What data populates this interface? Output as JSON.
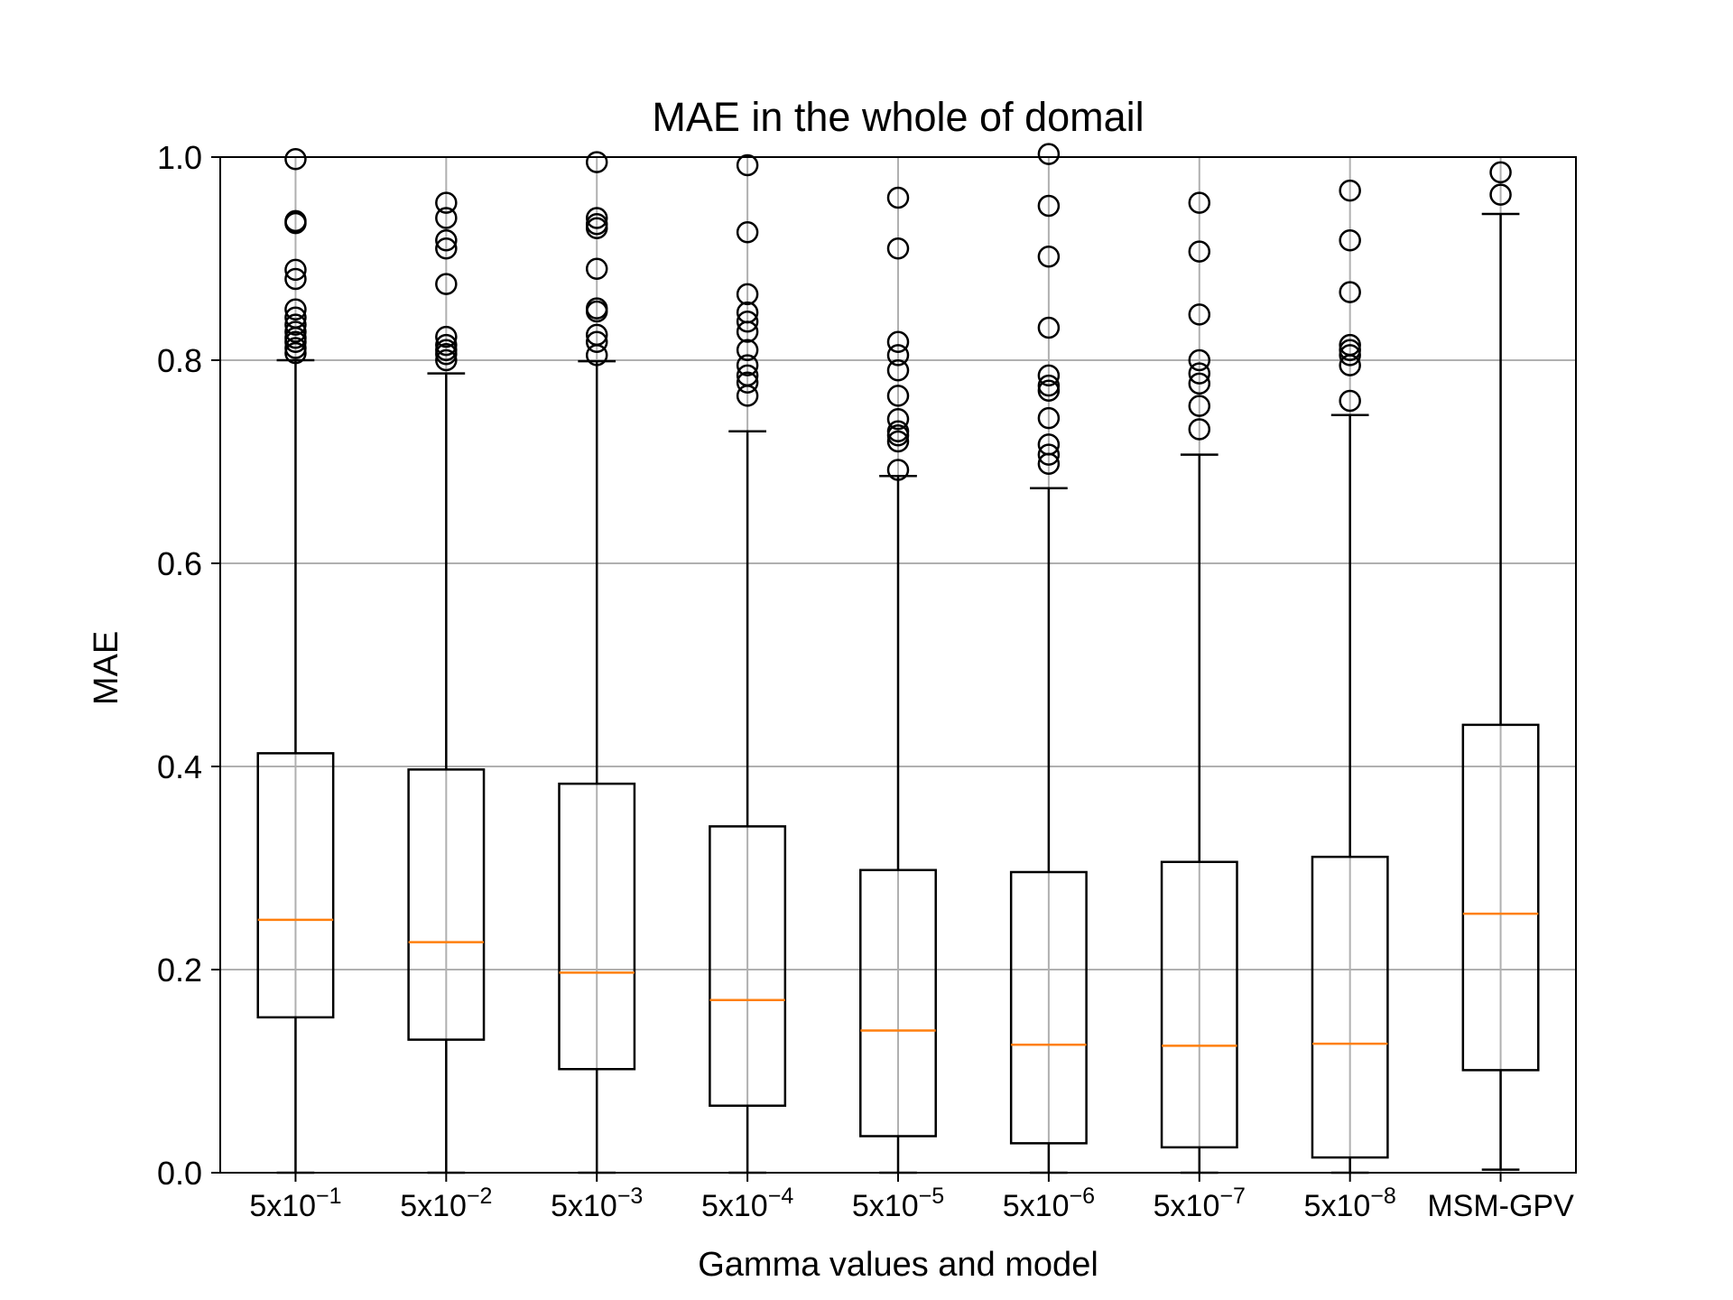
{
  "chart_data": {
    "type": "box",
    "title": "MAE in the whole of domail",
    "xlabel": "Gamma values and model",
    "ylabel": "MAE",
    "ylim": [
      0.0,
      1.0
    ],
    "yticks": [
      "0.0",
      "0.2",
      "0.4",
      "0.6",
      "0.8",
      "1.0"
    ],
    "grid": true,
    "colors": {
      "box": "#000000",
      "median": "#ff7f0e",
      "grid": "#b0b0b0"
    },
    "categories": [
      {
        "base": "5x10",
        "exp": "−1"
      },
      {
        "base": "5x10",
        "exp": "−2"
      },
      {
        "base": "5x10",
        "exp": "−3"
      },
      {
        "base": "5x10",
        "exp": "−4"
      },
      {
        "base": "5x10",
        "exp": "−5"
      },
      {
        "base": "5x10",
        "exp": "−6"
      },
      {
        "base": "5x10",
        "exp": "−7"
      },
      {
        "base": "5x10",
        "exp": "−8"
      },
      {
        "base": "MSM-GPV",
        "exp": ""
      }
    ],
    "boxes": [
      {
        "whislo": 0.0,
        "q1": 0.153,
        "med": 0.249,
        "q3": 0.413,
        "whishi": 0.8,
        "fliers": [
          0.807,
          0.812,
          0.818,
          0.822,
          0.828,
          0.835,
          0.842,
          0.85,
          0.88,
          0.889,
          0.935,
          0.937,
          0.998
        ]
      },
      {
        "whislo": 0.0,
        "q1": 0.131,
        "med": 0.227,
        "q3": 0.397,
        "whishi": 0.787,
        "fliers": [
          0.8,
          0.806,
          0.81,
          0.815,
          0.823,
          0.875,
          0.91,
          0.918,
          0.94,
          0.955
        ]
      },
      {
        "whislo": 0.0,
        "q1": 0.102,
        "med": 0.197,
        "q3": 0.383,
        "whishi": 0.799,
        "fliers": [
          0.805,
          0.818,
          0.825,
          0.848,
          0.851,
          0.89,
          0.93,
          0.934,
          0.94,
          0.995
        ]
      },
      {
        "whislo": 0.0,
        "q1": 0.066,
        "med": 0.17,
        "q3": 0.341,
        "whishi": 0.73,
        "fliers": [
          0.765,
          0.778,
          0.785,
          0.795,
          0.81,
          0.828,
          0.838,
          0.847,
          0.865,
          0.926,
          0.992
        ]
      },
      {
        "whislo": 0.0,
        "q1": 0.036,
        "med": 0.14,
        "q3": 0.298,
        "whishi": 0.686,
        "fliers": [
          0.692,
          0.72,
          0.726,
          0.73,
          0.742,
          0.765,
          0.79,
          0.805,
          0.818,
          0.91,
          0.96
        ]
      },
      {
        "whislo": 0.0,
        "q1": 0.029,
        "med": 0.126,
        "q3": 0.296,
        "whishi": 0.674,
        "fliers": [
          0.698,
          0.707,
          0.717,
          0.743,
          0.77,
          0.775,
          0.785,
          0.832,
          0.902,
          0.952,
          1.003
        ]
      },
      {
        "whislo": 0.0,
        "q1": 0.025,
        "med": 0.125,
        "q3": 0.306,
        "whishi": 0.707,
        "fliers": [
          0.732,
          0.755,
          0.777,
          0.787,
          0.8,
          0.845,
          0.907,
          0.955
        ]
      },
      {
        "whislo": 0.0,
        "q1": 0.015,
        "med": 0.127,
        "q3": 0.311,
        "whishi": 0.746,
        "fliers": [
          0.76,
          0.795,
          0.805,
          0.81,
          0.815,
          0.867,
          0.918,
          0.967
        ]
      },
      {
        "whislo": 0.003,
        "q1": 0.101,
        "med": 0.255,
        "q3": 0.441,
        "whishi": 0.944,
        "fliers": [
          0.963,
          0.985
        ]
      }
    ]
  }
}
